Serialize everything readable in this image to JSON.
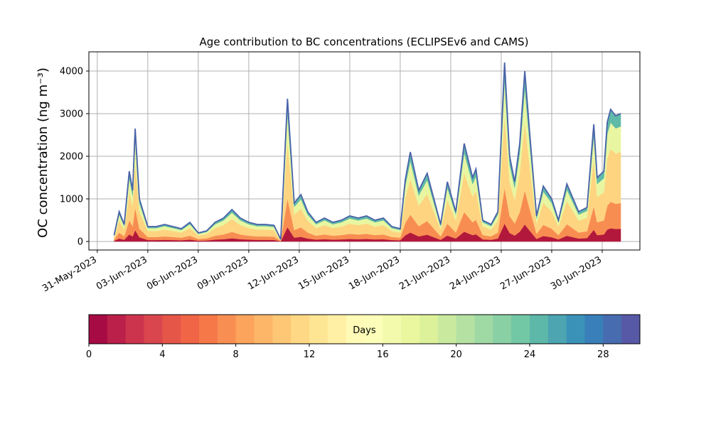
{
  "chart_data": {
    "type": "stacked_area",
    "title": "Age contribution to BC concentrations (ECLIPSEv6 and CAMS)",
    "y_label": "OC concentration (ng m⁻³)",
    "x": [
      1.0,
      1.3,
      1.6,
      1.9,
      2.1,
      2.25,
      2.5,
      3.0,
      3.5,
      4.0,
      4.5,
      5.0,
      5.5,
      6.0,
      6.5,
      7.0,
      7.5,
      8.0,
      8.5,
      9.0,
      9.5,
      10.0,
      10.5,
      10.9,
      11.3,
      11.7,
      12.1,
      12.5,
      13.0,
      13.5,
      14.0,
      14.5,
      15.0,
      15.5,
      16.0,
      16.5,
      17.0,
      17.5,
      18.0,
      18.3,
      18.6,
      19.1,
      19.6,
      20.0,
      20.4,
      20.8,
      21.3,
      21.8,
      22.3,
      22.5,
      22.9,
      23.4,
      23.8,
      24.2,
      24.5,
      24.8,
      25.1,
      25.4,
      25.7,
      26.1,
      26.5,
      27.0,
      27.4,
      27.9,
      28.6,
      29.1,
      29.5,
      29.7,
      30.1,
      30.3,
      30.5,
      30.8,
      31.1
    ],
    "series": [
      {
        "color": "#b2183c",
        "values": [
          15,
          70,
          40,
          165,
          120,
          265,
          100,
          35,
          35,
          40,
          35,
          30,
          45,
          20,
          25,
          45,
          55,
          75,
          55,
          45,
          40,
          40,
          38,
          5,
          335,
          90,
          110,
          70,
          45,
          55,
          45,
          50,
          60,
          55,
          60,
          50,
          55,
          35,
          30,
          145,
          210,
          120,
          160,
          100,
          40,
          140,
          70,
          230,
          150,
          170,
          50,
          40,
          70,
          420,
          200,
          140,
          230,
          400,
          250,
          60,
          130,
          100,
          50,
          135,
          70,
          80,
          275,
          150,
          165,
          280,
          310,
          295,
          300
        ]
      },
      {
        "color": "#f88d52",
        "values": [
          30,
          140,
          80,
          330,
          240,
          530,
          200,
          70,
          70,
          80,
          70,
          60,
          90,
          40,
          50,
          90,
          110,
          150,
          110,
          90,
          80,
          80,
          76,
          10,
          670,
          180,
          220,
          140,
          90,
          110,
          90,
          100,
          120,
          110,
          120,
          100,
          110,
          70,
          60,
          290,
          420,
          240,
          320,
          200,
          80,
          280,
          140,
          460,
          300,
          340,
          100,
          80,
          140,
          840,
          400,
          280,
          460,
          800,
          500,
          120,
          260,
          200,
          100,
          270,
          140,
          160,
          550,
          300,
          330,
          560,
          620,
          590,
          600
        ]
      },
      {
        "color": "#fed481",
        "values": [
          60,
          280,
          160,
          660,
          480,
          1060,
          400,
          140,
          140,
          160,
          140,
          120,
          180,
          80,
          100,
          180,
          220,
          300,
          220,
          180,
          160,
          160,
          152,
          20,
          1340,
          360,
          440,
          280,
          180,
          220,
          180,
          200,
          240,
          220,
          240,
          200,
          220,
          140,
          120,
          580,
          840,
          480,
          640,
          400,
          160,
          560,
          280,
          920,
          600,
          680,
          200,
          160,
          280,
          1680,
          800,
          560,
          920,
          1600,
          1000,
          240,
          520,
          400,
          200,
          540,
          280,
          320,
          1100,
          600,
          660,
          1120,
          1240,
          1180,
          1200
        ]
      },
      {
        "color": "#e9f6a1",
        "values": [
          30,
          140,
          80,
          330,
          240,
          530,
          200,
          70,
          70,
          80,
          70,
          60,
          90,
          40,
          50,
          90,
          110,
          150,
          110,
          90,
          80,
          80,
          76,
          10,
          670,
          180,
          220,
          140,
          90,
          110,
          90,
          100,
          120,
          110,
          120,
          100,
          110,
          70,
          60,
          290,
          420,
          240,
          320,
          200,
          80,
          280,
          140,
          460,
          300,
          340,
          100,
          80,
          140,
          840,
          400,
          280,
          460,
          800,
          500,
          120,
          260,
          200,
          100,
          270,
          140,
          160,
          550,
          300,
          330,
          560,
          620,
          590,
          600
        ]
      },
      {
        "color": "#5fbaa8",
        "values": [
          15,
          70,
          40,
          165,
          120,
          265,
          100,
          35,
          35,
          40,
          35,
          30,
          45,
          20,
          25,
          45,
          55,
          75,
          55,
          45,
          40,
          40,
          38,
          5,
          335,
          90,
          110,
          70,
          45,
          55,
          45,
          50,
          60,
          55,
          60,
          50,
          55,
          35,
          30,
          145,
          210,
          120,
          160,
          100,
          40,
          140,
          70,
          230,
          150,
          170,
          50,
          40,
          70,
          420,
          200,
          140,
          230,
          400,
          250,
          60,
          130,
          100,
          50,
          135,
          70,
          80,
          275,
          150,
          165,
          280,
          310,
          295,
          300
        ]
      }
    ],
    "outline_color": "#4a62a8",
    "xlim": [
      -0.5,
      32.24
    ],
    "xticks": [
      {
        "value": 0,
        "label": "31-May-2023"
      },
      {
        "value": 3,
        "label": "03-Jun-2023"
      },
      {
        "value": 6,
        "label": "06-Jun-2023"
      },
      {
        "value": 9,
        "label": "09-Jun-2023"
      },
      {
        "value": 12,
        "label": "12-Jun-2023"
      },
      {
        "value": 15,
        "label": "15-Jun-2023"
      },
      {
        "value": 18,
        "label": "18-Jun-2023"
      },
      {
        "value": 21,
        "label": "21-Jun-2023"
      },
      {
        "value": 24,
        "label": "24-Jun-2023"
      },
      {
        "value": 27,
        "label": "27-Jun-2023"
      },
      {
        "value": 30,
        "label": "30-Jun-2023"
      }
    ],
    "ylim": [
      -200,
      4450
    ],
    "yticks": [
      0,
      1000,
      2000,
      3000,
      4000
    ],
    "grid": true,
    "colorbar": {
      "label": "Days",
      "lim": [
        0,
        30
      ],
      "ticks": [
        0,
        4,
        8,
        12,
        16,
        20,
        24,
        28
      ],
      "cmap": [
        "#9e0142",
        "#d53e4f",
        "#f46d43",
        "#fdae61",
        "#fee08b",
        "#ffffbf",
        "#e6f598",
        "#abdda4",
        "#66c2a5",
        "#3288bd",
        "#5e4fa2"
      ]
    }
  }
}
